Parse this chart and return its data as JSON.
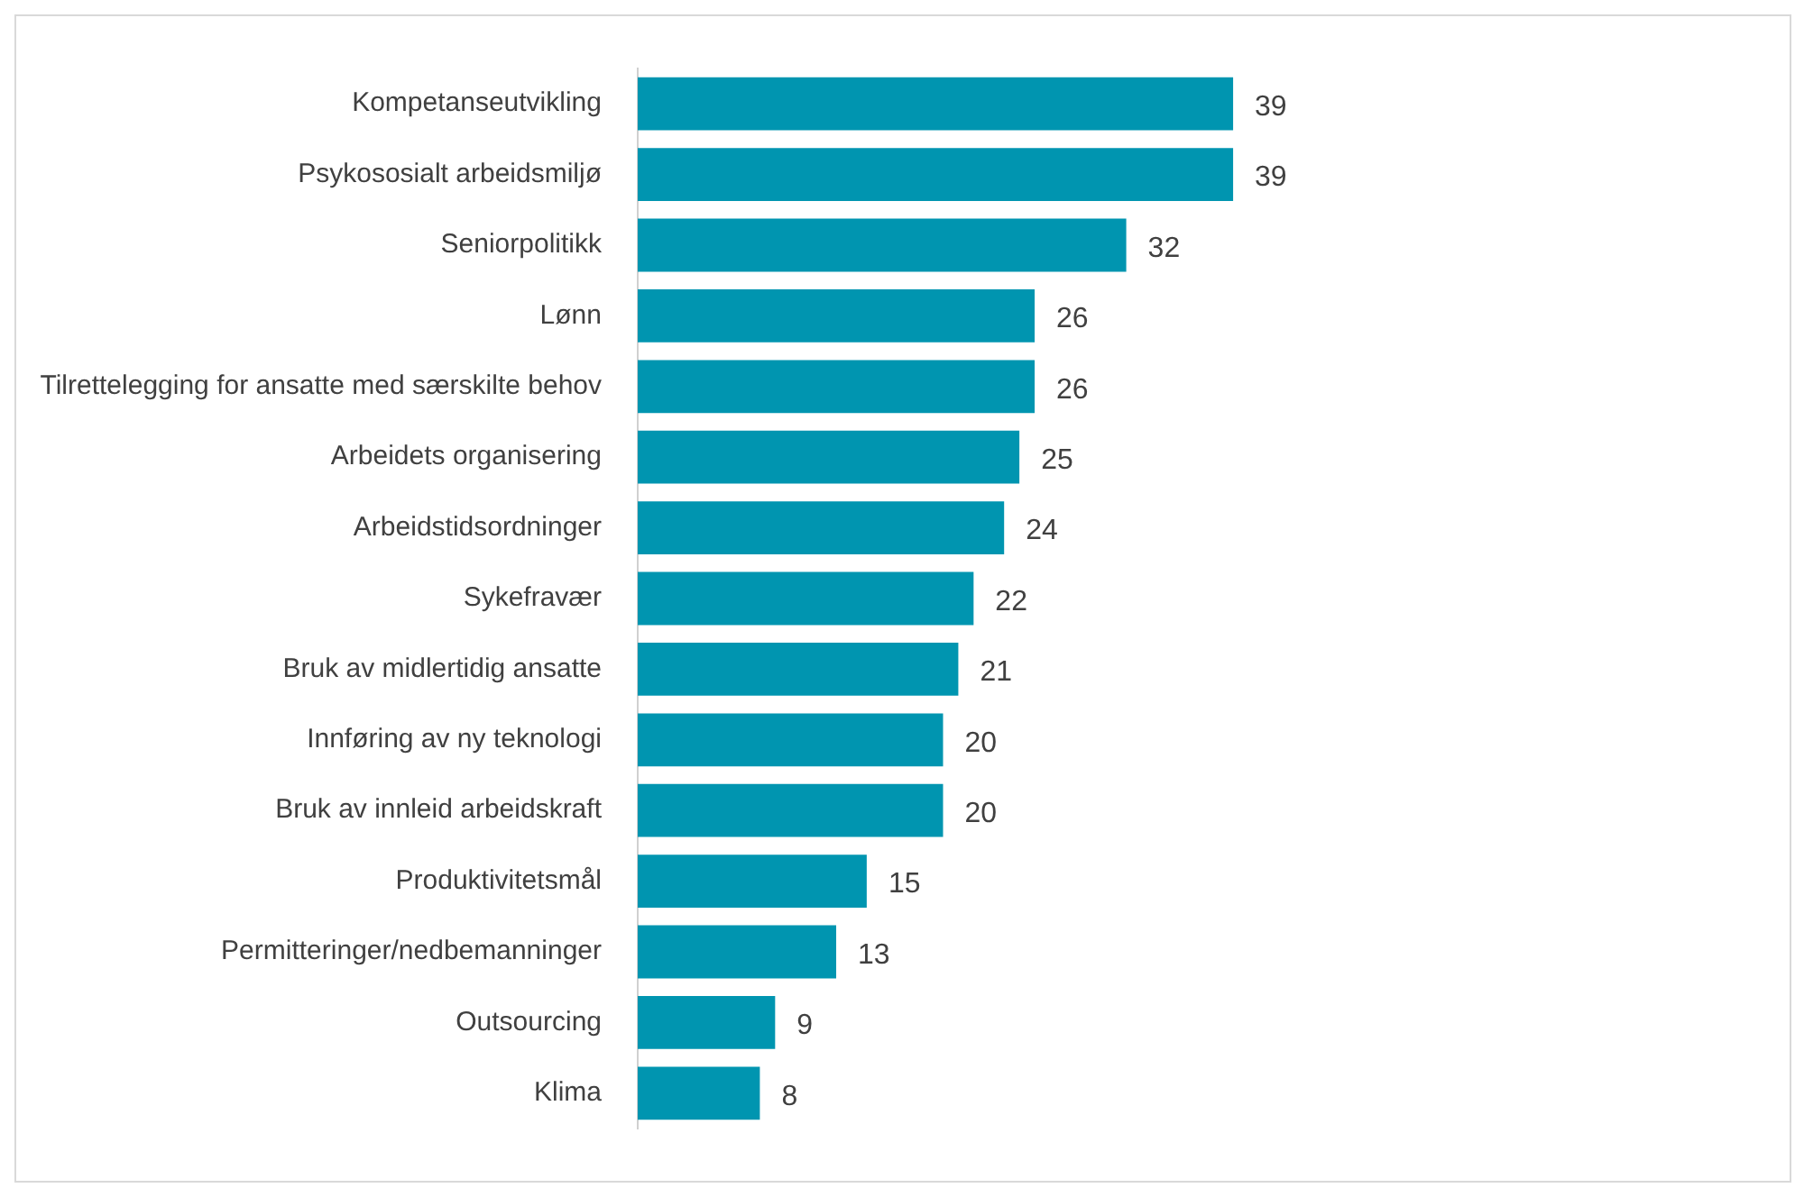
{
  "chart_data": {
    "type": "bar",
    "orientation": "horizontal",
    "data_labels": true,
    "legend": false,
    "tick_labels": "y",
    "categories": [
      "Kompetanseutvikling",
      "Psykososialt arbeidsmiljø",
      "Seniorpolitikk",
      "Lønn",
      "Tilrettelegging for ansatte med særskilte behov",
      "Arbeidets organisering",
      "Arbeidstidsordninger",
      "Sykefravær",
      "Bruk av midlertidig ansatte",
      "Innføring av ny teknologi",
      "Bruk av innleid arbeidskraft",
      "Produktivitetsmål",
      "Permitteringer/nedbemanninger",
      "Outsourcing",
      "Klima"
    ],
    "values": [
      39,
      39,
      32,
      26,
      26,
      25,
      24,
      22,
      21,
      20,
      20,
      15,
      13,
      9,
      8
    ],
    "color": "#0095b0"
  }
}
